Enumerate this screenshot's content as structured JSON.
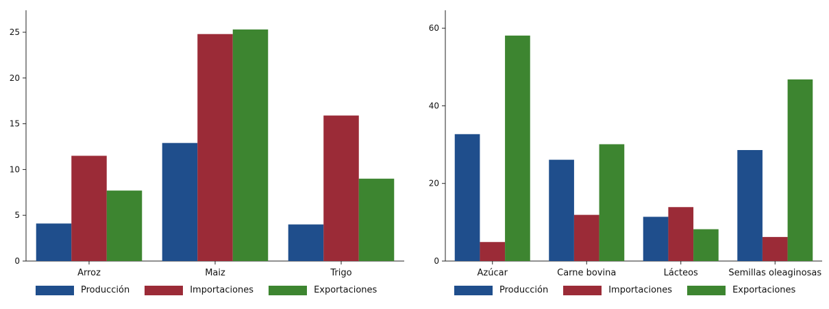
{
  "colors": {
    "produccion": "#1f4e8c",
    "importaciones": "#9b2b37",
    "exportaciones": "#3d8530"
  },
  "legend": {
    "items": [
      "Producción",
      "Importaciones",
      "Exportaciones"
    ]
  },
  "chart_data": [
    {
      "type": "bar",
      "categories": [
        "Arroz",
        "Maiz",
        "Trigo"
      ],
      "series": [
        {
          "name": "Producción",
          "values": [
            4.1,
            12.9,
            4.0
          ]
        },
        {
          "name": "Importaciones",
          "values": [
            11.5,
            24.8,
            15.9
          ]
        },
        {
          "name": "Exportaciones",
          "values": [
            7.7,
            25.3,
            9.0
          ]
        }
      ],
      "yticks": [
        0,
        5,
        10,
        15,
        20,
        25
      ],
      "ylim": [
        0,
        26.5
      ],
      "title": "",
      "xlabel": "",
      "ylabel": "",
      "legend_position": "bottom",
      "grid": false
    },
    {
      "type": "bar",
      "categories": [
        "Azúcar",
        "Carne bovina",
        "Lácteos",
        "Semillas oleaginosas"
      ],
      "series": [
        {
          "name": "Producción",
          "values": [
            32.7,
            26.1,
            11.4,
            28.6
          ]
        },
        {
          "name": "Importaciones",
          "values": [
            4.9,
            11.9,
            13.9,
            6.2
          ]
        },
        {
          "name": "Exportaciones",
          "values": [
            58.1,
            30.1,
            8.2,
            46.8
          ]
        }
      ],
      "yticks": [
        0,
        20,
        40,
        60
      ],
      "ylim": [
        0,
        62.5
      ],
      "title": "",
      "xlabel": "",
      "ylabel": "",
      "legend_position": "bottom",
      "grid": false
    }
  ]
}
